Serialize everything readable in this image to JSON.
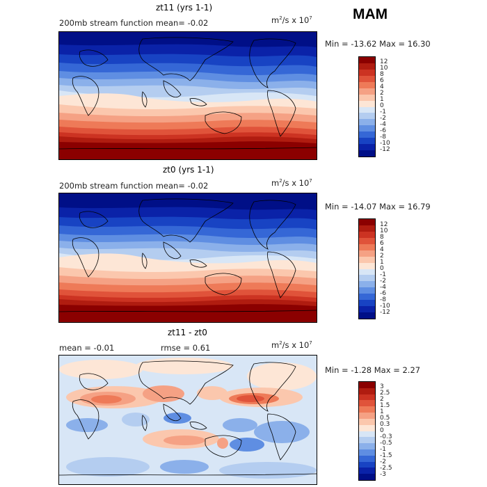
{
  "season": "MAM",
  "panels": [
    {
      "title": "zt11 (yrs 1-1)",
      "subtitle_left": "200mb stream function   mean=   -0.02",
      "units": "m²/s x 10⁷",
      "minmax": "Min = -13.62 Max =   16.30",
      "colorbar_labels": [
        "12",
        "10",
        "8",
        "6",
        "4",
        "2",
        "1",
        "0",
        "-1",
        "-2",
        "-4",
        "-6",
        "-8",
        "-10",
        "-12"
      ]
    },
    {
      "title": "zt0 (yrs 1-1)",
      "subtitle_left": "200mb stream function   mean=   -0.02",
      "units": "m²/s x 10⁷",
      "minmax": "Min = -14.07 Max =   16.79",
      "colorbar_labels": [
        "12",
        "10",
        "8",
        "6",
        "4",
        "2",
        "1",
        "0",
        "-1",
        "-2",
        "-4",
        "-6",
        "-8",
        "-10",
        "-12"
      ]
    },
    {
      "title": "zt11 - zt0",
      "subtitle_left": "mean =   -0.01",
      "subtitle_mid": "rmse =    0.61",
      "units": "m²/s x 10⁷",
      "minmax": "Min = -1.28 Max =   2.27",
      "colorbar_labels": [
        "3",
        "2.5",
        "2",
        "1.5",
        "1",
        "0.5",
        "0.3",
        "0",
        "-0.3",
        "-0.5",
        "-1",
        "-1.5",
        "-2",
        "-2.5",
        "-3"
      ]
    }
  ],
  "colors": {
    "scale": [
      "#8b0000",
      "#b01c10",
      "#cc3322",
      "#e0533a",
      "#ee7a58",
      "#f5a184",
      "#fbc7ad",
      "#fde6d6",
      "#d8e6f6",
      "#b4cdf0",
      "#8bb0ea",
      "#5f8ee2",
      "#3567d6",
      "#1843c3",
      "#0a22a8",
      "#000f87"
    ]
  }
}
